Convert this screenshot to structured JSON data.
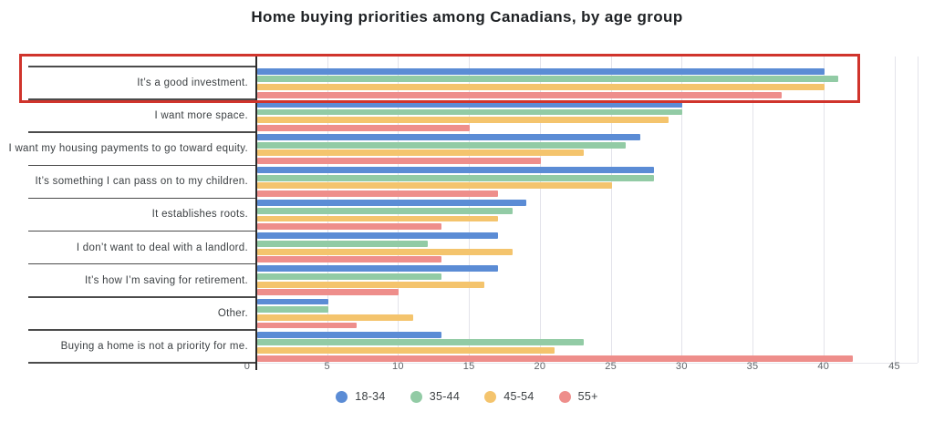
{
  "chart_data": {
    "type": "bar",
    "orientation": "horizontal",
    "title": "Home buying priorities among Canadians, by age group",
    "categories": [
      "It’s a good investment.",
      "I want more space.",
      "I want my housing payments to go toward equity.",
      "It’s something I can pass on to my children.",
      "It establishes roots.",
      "I don’t want to deal with a landlord.",
      "It’s how I’m saving for retirement.",
      "Other.",
      "Buying a home is not a priority for me."
    ],
    "series": [
      {
        "name": "18-34",
        "color": "#5b8cd5",
        "values": [
          40,
          30,
          27,
          28,
          19,
          17,
          17,
          5,
          13
        ]
      },
      {
        "name": "35-44",
        "color": "#92cba5",
        "values": [
          41,
          30,
          26,
          28,
          18,
          12,
          13,
          5,
          23
        ]
      },
      {
        "name": "45-54",
        "color": "#f4c46d",
        "values": [
          40,
          29,
          23,
          25,
          17,
          18,
          16,
          11,
          21
        ]
      },
      {
        "name": "55+",
        "color": "#ee8e8b",
        "values": [
          37,
          15,
          20,
          17,
          13,
          13,
          10,
          7,
          42
        ]
      }
    ],
    "xlim": [
      0,
      45
    ],
    "xticks": [
      0,
      5,
      10,
      15,
      20,
      25,
      30,
      35,
      40,
      45
    ],
    "grid": "vertical",
    "legend_position": "bottom",
    "highlight": {
      "category_index": 0,
      "color": "#d0342c",
      "label": "highlight-box"
    }
  }
}
